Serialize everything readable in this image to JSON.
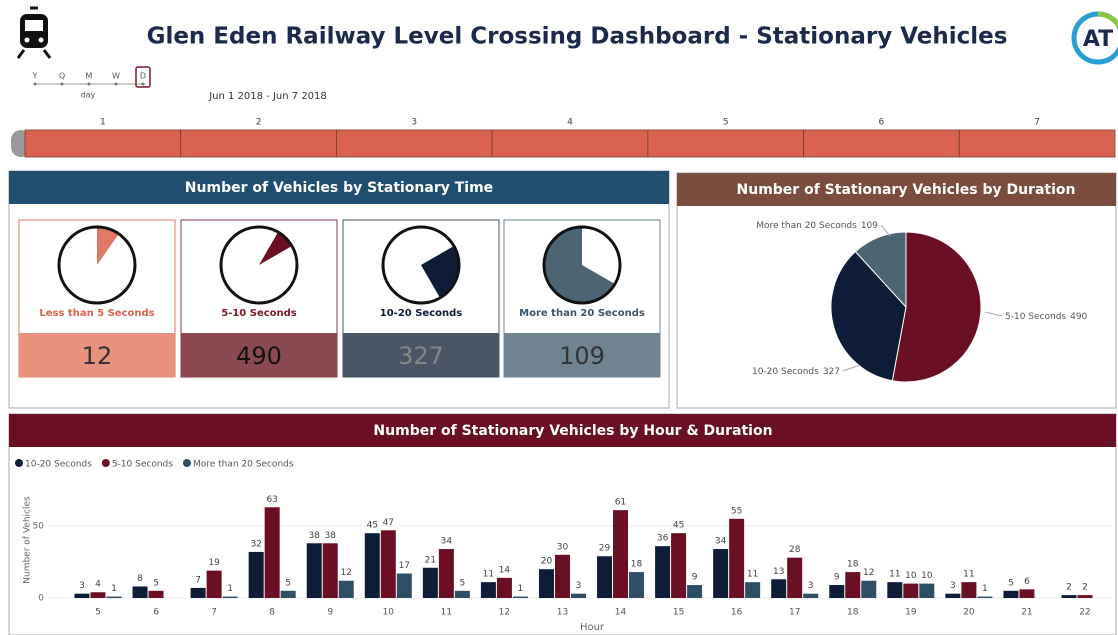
{
  "header": {
    "title": "Glen Eden Railway Level Crossing Dashboard - Stationary Vehicles",
    "logo": "AT"
  },
  "slicer": {
    "levels": [
      "Y",
      "Q",
      "M",
      "W",
      "D"
    ],
    "level_label": "day",
    "range": "Jun 1 2018 - Jun 7 2018",
    "days": [
      "1",
      "2",
      "3",
      "4",
      "5",
      "6",
      "7"
    ]
  },
  "cards_panel": {
    "title": "Number of Vehicles by Stationary Time",
    "cards": [
      {
        "label": "Less than 5 Seconds",
        "value": "12"
      },
      {
        "label": "5-10 Seconds",
        "value": "490"
      },
      {
        "label": "10-20 Seconds",
        "value": "327"
      },
      {
        "label": "More than 20 Seconds",
        "value": "109"
      }
    ]
  },
  "chart_data": [
    {
      "type": "pie",
      "title": "Number of Stationary Vehicles by Duration",
      "categories": [
        "5-10 Seconds",
        "10-20 Seconds",
        "More than 20 Seconds"
      ],
      "values": [
        490,
        327,
        109
      ],
      "colors": [
        "#6b0f24",
        "#0f1c38",
        "#4d6472"
      ]
    },
    {
      "type": "bar",
      "title": "Number of Stationary Vehicles by Hour & Duration",
      "x_label": "Hour",
      "y_label": "Number of Vehicles",
      "categories": [
        5,
        6,
        7,
        8,
        9,
        10,
        11,
        12,
        13,
        14,
        15,
        16,
        17,
        18,
        19,
        20,
        21,
        22
      ],
      "series": [
        {
          "name": "10-20 Seconds",
          "color": "#0f1c38",
          "values": [
            3,
            8,
            7,
            32,
            38,
            45,
            21,
            11,
            20,
            29,
            36,
            34,
            13,
            9,
            11,
            3,
            5,
            2
          ]
        },
        {
          "name": "5-10 Seconds",
          "color": "#6b0f24",
          "values": [
            4,
            5,
            19,
            63,
            38,
            47,
            34,
            14,
            30,
            61,
            45,
            55,
            28,
            18,
            10,
            11,
            6,
            2
          ]
        },
        {
          "name": "More than 20 Seconds",
          "color": "#2f4f64",
          "values": [
            1,
            null,
            1,
            5,
            12,
            17,
            5,
            1,
            3,
            18,
            9,
            11,
            3,
            12,
            10,
            1,
            null,
            null
          ]
        }
      ],
      "ylim": [
        0,
        70
      ],
      "yticks": [
        0,
        50
      ],
      "grid": true,
      "legend": "top-left"
    }
  ]
}
